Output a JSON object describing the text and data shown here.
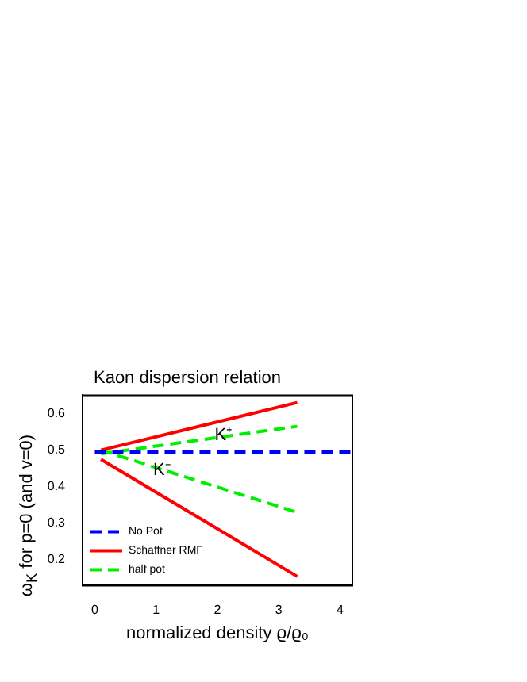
{
  "chart_data": {
    "type": "line",
    "title": "Kaon dispersion relation",
    "xlabel": "normalized density ϱ/ϱ₀",
    "ylabel": "ω$_{K}$ for p=0 (and v=0)",
    "xlim": [
      -0.2,
      4.2
    ],
    "ylim": [
      0.13,
      0.65
    ],
    "xticks": [
      0,
      1,
      2,
      3,
      4
    ],
    "yticks": [
      0.2,
      0.3,
      0.4,
      0.5,
      0.6
    ],
    "grid": false,
    "legend": "bottom left",
    "marker": "none",
    "series": [
      {
        "name": "No Pot",
        "color": "#0000ff",
        "line_style": "dashed",
        "x": [
          0,
          4.2
        ],
        "values": [
          0.495,
          0.495
        ]
      },
      {
        "name": "Schaffner RMF",
        "color": "#ff0000",
        "line_style": "solid",
        "x": [
          0.1,
          3.3
        ],
        "values": [
          0.5,
          0.63
        ]
      },
      {
        "color": "#ff0000",
        "line_style": "solid",
        "x": [
          0.1,
          3.3
        ],
        "values": [
          0.475,
          0.155
        ]
      },
      {
        "name": "half pot",
        "color": "#00ee00",
        "line_style": "dashed",
        "x": [
          0.1,
          3.3
        ],
        "values": [
          0.49,
          0.565
        ]
      },
      {
        "color": "#00ee00",
        "line_style": "dashed",
        "x": [
          0.1,
          3.3
        ],
        "values": [
          0.5,
          0.33
        ]
      }
    ],
    "annotations": [
      {
        "text": "K⁺",
        "x": 2.1,
        "y": 0.54
      },
      {
        "text": "K⁻",
        "x": 1.1,
        "y": 0.445
      }
    ]
  }
}
